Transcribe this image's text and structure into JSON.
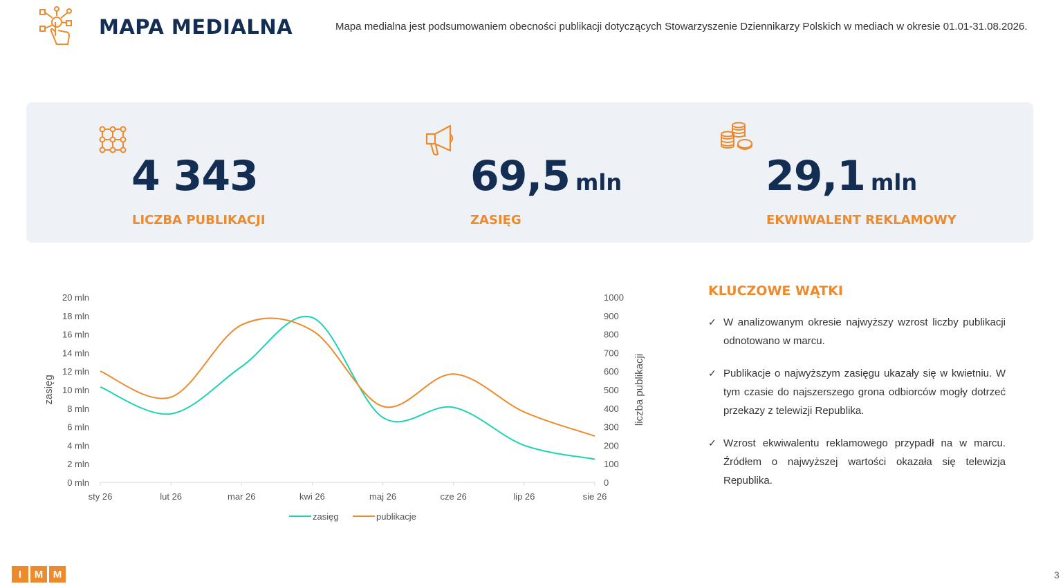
{
  "header": {
    "title": "MAPA MEDIALNA",
    "intro": "Mapa medialna jest podsumowaniem obecności publikacji dotyczących Stowarzyszenie Dziennikarzy Polskich w mediach w okresie 01.01-31.08.2026."
  },
  "kpis": [
    {
      "icon": "network-grid-icon",
      "value": "4 343",
      "unit": "",
      "label": "LICZBA PUBLIKACJI"
    },
    {
      "icon": "megaphone-icon",
      "value": "69,5",
      "unit": "mln",
      "label": "ZASIĘG"
    },
    {
      "icon": "coins-icon",
      "value": "29,1",
      "unit": "mln",
      "label": "EKWIWALENT REKLAMOWY"
    }
  ],
  "colors": {
    "accent": "#ec8a2c",
    "navy": "#142d52",
    "teal": "#1dd3b0",
    "panel": "#eef2f6"
  },
  "chart_data": {
    "type": "line",
    "categories": [
      "sty 26",
      "lut 26",
      "mar 26",
      "kwi 26",
      "maj 26",
      "cze 26",
      "lip 26",
      "sie 26"
    ],
    "series": [
      {
        "name": "zasięg",
        "axis": "left",
        "color": "#1dd3b0",
        "values": [
          10.3,
          7.4,
          12.5,
          17.8,
          7.0,
          8.1,
          4.0,
          2.5
        ]
      },
      {
        "name": "publikacje",
        "axis": "right",
        "color": "#ec8a2c",
        "values": [
          600,
          460,
          850,
          820,
          410,
          585,
          380,
          250
        ]
      }
    ],
    "ylabel": "zasięg",
    "y2label": "liczba publikacji",
    "ylim": [
      0,
      20
    ],
    "y2lim": [
      0,
      1000
    ],
    "yticks": [
      "0 mln",
      "2 mln",
      "4 mln",
      "6 mln",
      "8 mln",
      "10 mln",
      "12 mln",
      "14 mln",
      "16 mln",
      "18 mln",
      "20 mln"
    ],
    "y2ticks": [
      "0",
      "100",
      "200",
      "300",
      "400",
      "500",
      "600",
      "700",
      "800",
      "900",
      "1000"
    ],
    "legend": "bottom",
    "grid": false
  },
  "key_threads": {
    "title": "KLUCZOWE WĄTKI",
    "items": [
      "W analizowanym okresie najwyższy wzrost liczby publikacji odnotowano w marcu.",
      "Publikacje o najwyższym zasięgu ukazały się w kwietniu. W tym czasie do najszerszego grona odbiorców mogły dotrzeć przekazy z telewizji Republika.",
      "Wzrost ekwiwalentu reklamowego przypadł na w marcu. Źródłem o najwyższej wartości okazała się telewizja Republika."
    ]
  },
  "footer": {
    "logo_letters": [
      "I",
      "M",
      "M"
    ],
    "page_number": "3"
  }
}
